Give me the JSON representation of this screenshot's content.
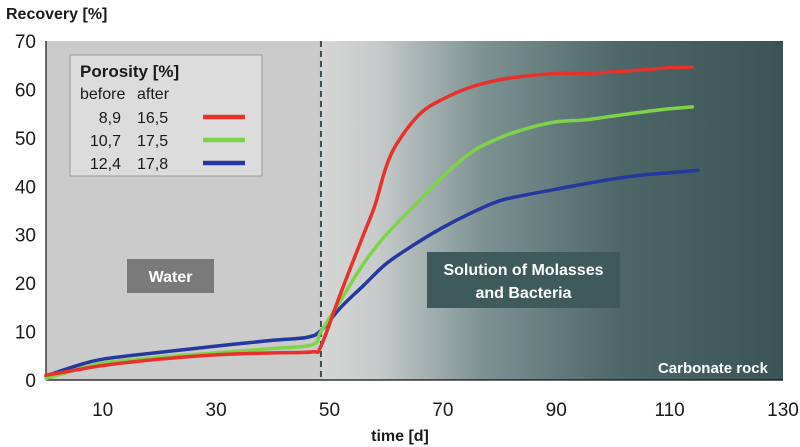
{
  "chart_data": {
    "type": "line",
    "ylabel": "Recovery [%]",
    "xlabel": "time [d]",
    "xlim": [
      0,
      130
    ],
    "ylim": [
      0,
      70
    ],
    "x_ticks": [
      10,
      30,
      50,
      70,
      90,
      110,
      130
    ],
    "y_ticks": [
      0,
      10,
      20,
      30,
      40,
      50,
      60,
      70
    ],
    "grid": false,
    "legend": {
      "title": "Porosity [%]",
      "headers": [
        "before",
        "after"
      ],
      "position": "top-left"
    },
    "series": [
      {
        "before": "8,9",
        "after": "16,5",
        "color": "#e8312a",
        "x": [
          0,
          5,
          10,
          20,
          30,
          40,
          47,
          48.5,
          52,
          56,
          58,
          60,
          62,
          66,
          70,
          75,
          80,
          85,
          90,
          95,
          100,
          105,
          110,
          114
        ],
        "y": [
          1,
          2,
          3,
          4.3,
          5.2,
          5.6,
          5.8,
          7,
          18,
          30,
          36,
          44,
          49,
          55,
          58,
          60.5,
          62,
          62.8,
          63.3,
          63.3,
          63.6,
          64,
          64.5,
          64.6
        ]
      },
      {
        "before": "10,7",
        "after": "17,5",
        "color": "#7ed348",
        "x": [
          0,
          5,
          10,
          20,
          30,
          40,
          47,
          48.5,
          52,
          56,
          60,
          65,
          70,
          75,
          80,
          85,
          90,
          95,
          100,
          105,
          110,
          114
        ],
        "y": [
          0.3,
          2,
          3.5,
          4.7,
          5.6,
          6.5,
          7.3,
          10,
          16.5,
          24,
          30,
          36,
          42,
          47,
          50,
          52,
          53.3,
          53.7,
          54.5,
          55.3,
          56,
          56.4
        ]
      },
      {
        "before": "12,4",
        "after": "17,8",
        "color": "#24399f",
        "x": [
          0,
          5,
          10,
          20,
          30,
          40,
          46,
          48.5,
          52,
          56,
          60,
          65,
          70,
          75,
          80,
          85,
          90,
          95,
          100,
          105,
          110,
          115
        ],
        "y": [
          0.8,
          2.8,
          4.3,
          5.7,
          7,
          8.2,
          8.8,
          10.2,
          15,
          19.5,
          24,
          28,
          31.5,
          34.5,
          37,
          38.3,
          39.4,
          40.5,
          41.5,
          42.3,
          42.8,
          43.3
        ]
      }
    ],
    "annotations": {
      "boundary_x": 48.5,
      "water_label": "Water",
      "solution_label_line1": "Solution of Molasses",
      "solution_label_line2": "and Bacteria",
      "rock_label": "Carbonate rock"
    }
  },
  "colors": {
    "water_bg": "#cbcbcb",
    "gradient_light": "#d2d2d2",
    "gradient_dark": "#3e5a5c",
    "label_box_water": "#7a7a7a",
    "label_box_solution": "#3f5a5b"
  }
}
